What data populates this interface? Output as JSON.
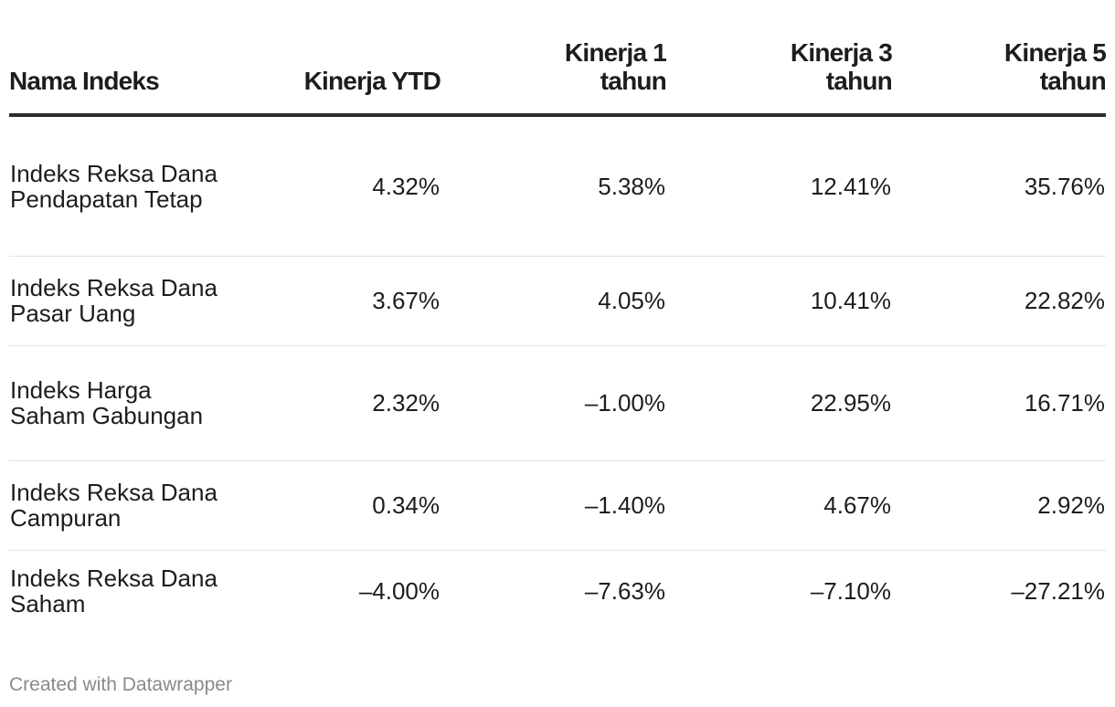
{
  "chart_data": {
    "type": "table",
    "columns": [
      "Nama Indeks",
      "Kinerja YTD",
      "Kinerja 1 tahun",
      "Kinerja 3 tahun",
      "Kinerja 5 tahun"
    ],
    "rows": [
      [
        "Indeks Reksa Dana Pendapatan Tetap",
        "4.32%",
        "5.38%",
        "12.41%",
        "35.76%"
      ],
      [
        "Indeks Reksa Dana Pasar Uang",
        "3.67%",
        "4.05%",
        "10.41%",
        "22.82%"
      ],
      [
        "Indeks Harga Saham Gabungan",
        "2.32%",
        "–1.00%",
        "22.95%",
        "16.71%"
      ],
      [
        "Indeks Reksa Dana Campuran",
        "0.34%",
        "–1.40%",
        "4.67%",
        "2.92%"
      ],
      [
        "Indeks Reksa Dana Saham",
        "–4.00%",
        "–7.63%",
        "–7.10%",
        "–27.21%"
      ]
    ]
  },
  "footer": {
    "credit": "Created with Datawrapper"
  },
  "colors": {
    "text": "#1d1d1d",
    "header_rule": "#2b2b2b",
    "row_divider": "#e3e3e3",
    "footer_text": "#8a8a8a"
  }
}
